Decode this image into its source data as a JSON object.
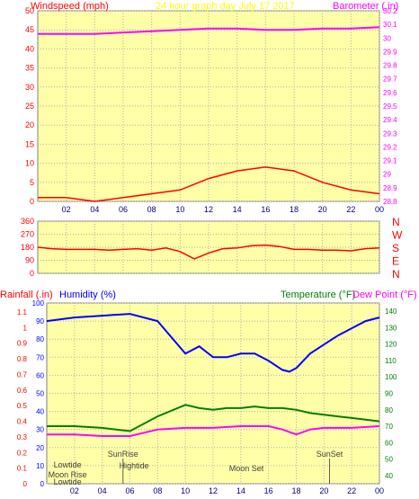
{
  "chart_data": [
    {
      "type": "line",
      "title": "24 hour graph day   July 17 2017",
      "left_axis_title": "Windspeed (mph)",
      "right_axis_title": "Barometer (.in)",
      "x_ticks": [
        "02",
        "04",
        "06",
        "08",
        "10",
        "12",
        "14",
        "16",
        "18",
        "20",
        "22",
        "00"
      ],
      "left_ticks": [
        "0",
        "5",
        "10",
        "15",
        "20",
        "25",
        "30",
        "35",
        "40",
        "45",
        "50"
      ],
      "right_ticks": [
        "28.8",
        "28.9",
        "29",
        "29.1",
        "29.2",
        "29.3",
        "29.4",
        "29.5",
        "29.6",
        "29.7",
        "29.8",
        "29.9",
        "30",
        "30.1",
        "30.2"
      ],
      "ylim_left": [
        0,
        50
      ],
      "ylim_right": [
        28.8,
        30.2
      ],
      "grid": true,
      "series": [
        {
          "name": "Barometer",
          "color": "#ff00ff",
          "axis": "right",
          "x": [
            0,
            4,
            8,
            10,
            12,
            14,
            16,
            18,
            20,
            22,
            24
          ],
          "values": [
            30.03,
            30.03,
            30.05,
            30.06,
            30.07,
            30.07,
            30.06,
            30.06,
            30.07,
            30.07,
            30.08
          ]
        },
        {
          "name": "Windspeed",
          "color": "#ff0000",
          "axis": "left",
          "x": [
            0,
            2,
            4,
            6,
            8,
            10,
            12,
            14,
            16,
            18,
            20,
            22,
            24
          ],
          "values": [
            1,
            1,
            0,
            1,
            2,
            3,
            6,
            8,
            9,
            8,
            5,
            3,
            2
          ]
        }
      ]
    },
    {
      "type": "scatter",
      "title": "",
      "x_ticks": [],
      "left_ticks": [
        "0",
        "90",
        "180",
        "270",
        "360"
      ],
      "right_ticks": [
        "N",
        "W",
        "S",
        "E",
        "N"
      ],
      "ylim": [
        0,
        360
      ],
      "grid": true,
      "series": [
        {
          "color": "#ff0000",
          "x": [
            0,
            1,
            2,
            3,
            4,
            5,
            6,
            7,
            8,
            9,
            10,
            11,
            12,
            13,
            14,
            15,
            16,
            17,
            18,
            19,
            20,
            21,
            22,
            23,
            24
          ],
          "values": [
            180,
            170,
            165,
            165,
            165,
            160,
            165,
            170,
            160,
            175,
            150,
            100,
            140,
            170,
            175,
            190,
            195,
            185,
            165,
            165,
            160,
            160,
            155,
            170,
            175
          ]
        }
      ]
    },
    {
      "type": "line",
      "title": "",
      "left_axis_titles": [
        "Rainfall (.in)",
        "Humidity (%)"
      ],
      "right_axis_titles": [
        "Temperature (°F)",
        "Dew Point (°F)"
      ],
      "x_ticks": [
        "02",
        "04",
        "06",
        "08",
        "10",
        "12",
        "14",
        "16",
        "18",
        "20",
        "22",
        "00"
      ],
      "left_ticks_humidity": [
        "0",
        "10",
        "20",
        "30",
        "40",
        "50",
        "60",
        "70",
        "80",
        "90",
        "100"
      ],
      "left_ticks_rain": [
        "0",
        "0.1",
        "0.2",
        "0.3",
        "0.4",
        "0.5",
        "0.6",
        "0.7",
        "0.8",
        "0.9",
        "1",
        "1.1"
      ],
      "right_ticks": [
        "40",
        "50",
        "60",
        "70",
        "80",
        "90",
        "100",
        "110",
        "120",
        "130",
        "140"
      ],
      "ylim_humidity": [
        0,
        100
      ],
      "ylim_temp": [
        35,
        145
      ],
      "grid": true,
      "annotations": [
        "Lowtide",
        "SunRise",
        "Hightide",
        "Moon Rise",
        "Lowtide",
        "Moon Set",
        "SunSet"
      ],
      "series": [
        {
          "name": "Humidity",
          "color": "#0000ff",
          "axis": "left",
          "x": [
            0,
            2,
            4,
            6,
            8,
            10,
            11,
            12,
            13,
            14,
            15,
            16,
            17,
            17.5,
            18,
            19,
            20,
            21,
            22,
            23,
            24
          ],
          "values": [
            90,
            92,
            93,
            94,
            90,
            72,
            76,
            70,
            70,
            72,
            72,
            68,
            63,
            62,
            64,
            72,
            77,
            82,
            86,
            90,
            92
          ]
        },
        {
          "name": "Temperature",
          "color": "#008000",
          "axis": "right",
          "x": [
            0,
            2,
            4,
            6,
            8,
            10,
            11,
            12,
            13,
            14,
            15,
            16,
            17,
            18,
            19,
            20,
            21,
            22,
            23,
            24
          ],
          "values": [
            70,
            70,
            69,
            67,
            76,
            83,
            81,
            80,
            81,
            81,
            82,
            81,
            81,
            80,
            78,
            77,
            76,
            75,
            74,
            73
          ]
        },
        {
          "name": "Dew Point",
          "color": "#ff00ff",
          "axis": "right",
          "x": [
            0,
            2,
            4,
            6,
            8,
            10,
            12,
            14,
            16,
            17,
            18,
            19,
            20,
            22,
            24
          ],
          "values": [
            65,
            65,
            64,
            64,
            68,
            69,
            69,
            70,
            70,
            68,
            65,
            68,
            69,
            69,
            70
          ]
        }
      ]
    }
  ]
}
